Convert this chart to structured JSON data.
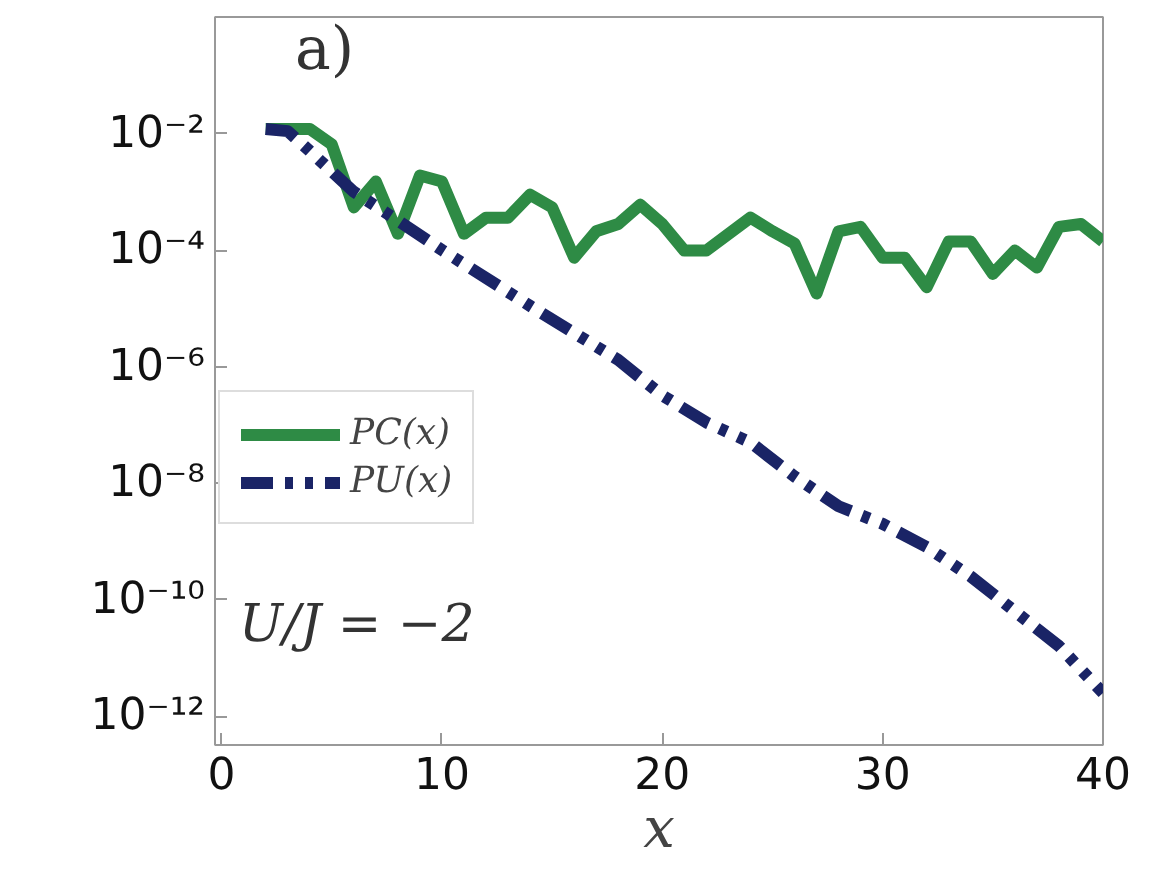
{
  "chart_data": {
    "type": "line",
    "xlabel": "x",
    "xlim": [
      -0.3,
      40
    ],
    "xticks": [
      0,
      10,
      20,
      30,
      40
    ],
    "ylim": [
      3.2e-13,
      1
    ],
    "log": "y",
    "yticks": [
      {
        "value": 0.01,
        "label": "10⁻²"
      },
      {
        "value": 0.0001,
        "label": "10⁻⁴"
      },
      {
        "value": 1e-06,
        "label": "10⁻⁶"
      },
      {
        "value": 1e-08,
        "label": "10⁻⁸"
      },
      {
        "value": 1e-10,
        "label": "10⁻¹⁰"
      },
      {
        "value": 1e-12,
        "label": "10⁻¹²"
      }
    ],
    "grid": false,
    "legend": "left",
    "marker": "none",
    "annotations": [
      "a)",
      "U/J = −2"
    ],
    "series": [
      {
        "name": "PC(x)",
        "color": "#2e8b45",
        "line_style": "solid",
        "x": [
          2,
          4,
          5,
          6,
          7,
          8,
          9,
          10,
          11,
          12,
          13,
          14,
          15,
          16,
          17,
          18,
          19,
          20,
          21,
          22,
          24,
          25,
          26,
          27,
          28,
          29,
          30,
          31,
          32,
          33,
          34,
          35,
          36,
          37,
          38,
          39,
          40
        ],
        "values": [
          0.012,
          0.012,
          0.0065,
          0.00054,
          0.0015,
          0.00019,
          0.0019,
          0.0015,
          0.00019,
          0.00036,
          0.00036,
          0.00089,
          0.00054,
          7.4e-05,
          0.00021,
          0.00028,
          0.0006,
          0.00028,
          9.8e-05,
          9.8e-05,
          0.00036,
          0.00021,
          0.00013,
          1.8e-05,
          0.00021,
          0.00025,
          7.4e-05,
          7.4e-05,
          2.3e-05,
          0.00014,
          0.00014,
          3.9e-05,
          9.8e-05,
          5e-05,
          0.00025,
          0.00028,
          0.00014
        ]
      },
      {
        "name": "PU(x)",
        "color": "#1a2466",
        "line_style": "dashdot",
        "x": [
          2,
          3,
          4,
          6,
          8,
          10,
          14,
          18,
          20,
          22,
          24,
          26,
          28,
          30,
          32,
          34,
          36,
          38,
          40
        ],
        "values": [
          0.012,
          0.011,
          0.005,
          0.001,
          0.00032,
          0.0001,
          1.1e-05,
          1.3e-06,
          3.2e-07,
          1.1e-07,
          5e-08,
          1.3e-08,
          4e-09,
          2e-09,
          8e-10,
          2.5e-10,
          6.3e-11,
          1.6e-11,
          2.5e-12
        ]
      }
    ]
  }
}
